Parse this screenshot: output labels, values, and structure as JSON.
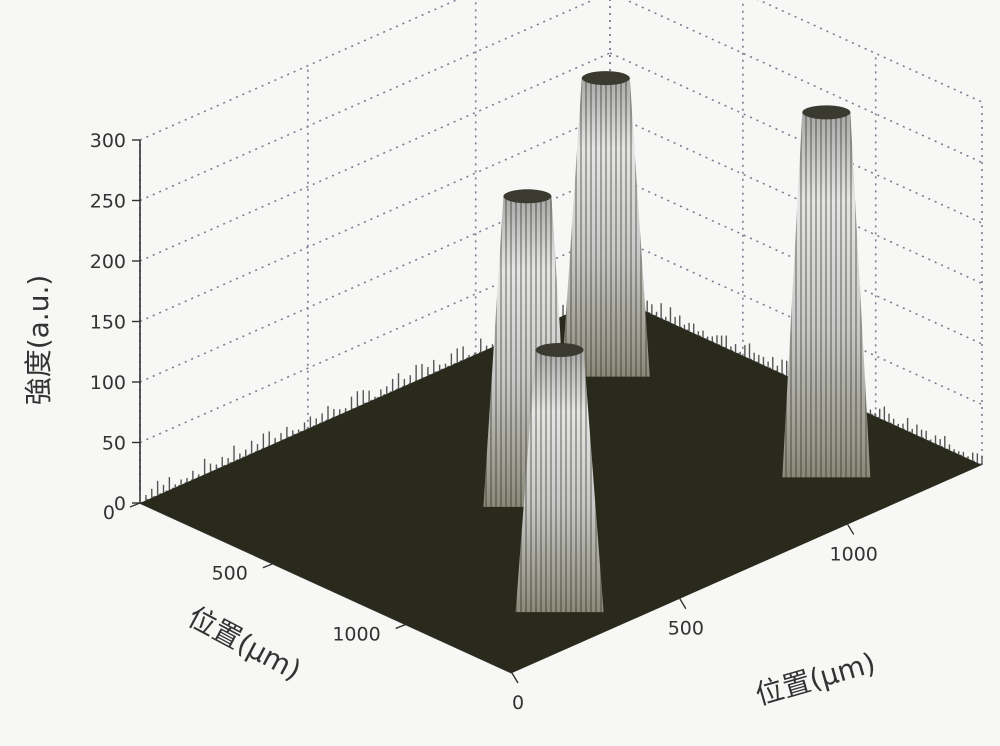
{
  "chart_data": {
    "type": "surface3d",
    "title": "",
    "xlabel": "位置(μm)",
    "ylabel": "位置(μm)",
    "zlabel": "強度(a.u.)",
    "x_range": [
      0,
      1400
    ],
    "y_range": [
      0,
      1400
    ],
    "zlim": [
      0,
      300
    ],
    "x_ticks": [
      0,
      500,
      1000
    ],
    "y_ticks": [
      0,
      500,
      1000
    ],
    "z_ticks": [
      0,
      50,
      100,
      150,
      200,
      250,
      300
    ],
    "grid": true,
    "surface_color": "#2a2a1c",
    "background_noise_level": 10,
    "peaks": [
      {
        "x": 300,
        "y": 1150,
        "height": 245
      },
      {
        "x": 1130,
        "y": 1150,
        "height": 300
      },
      {
        "x": 1200,
        "y": 300,
        "height": 215
      },
      {
        "x": 700,
        "y": 600,
        "height": 255
      }
    ]
  }
}
